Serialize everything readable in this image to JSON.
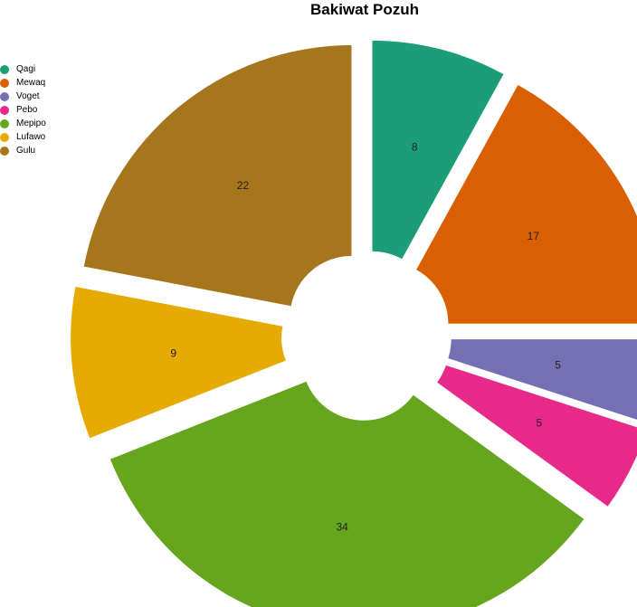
{
  "chart_data": {
    "type": "pie",
    "title": "Bakiwat Pozuh",
    "legend_position": "top-left",
    "donut": true,
    "exploded": true,
    "categories": [
      "Qagi",
      "Mewaq",
      "Voget",
      "Pebo",
      "Mepipo",
      "Lufawo",
      "Gulu"
    ],
    "values": [
      8,
      17,
      5,
      5,
      34,
      9,
      22
    ],
    "colors": [
      "#1b9e77",
      "#d95f02",
      "#7570b3",
      "#e7298a",
      "#66a61e",
      "#e6ab02",
      "#a6761d"
    ]
  }
}
